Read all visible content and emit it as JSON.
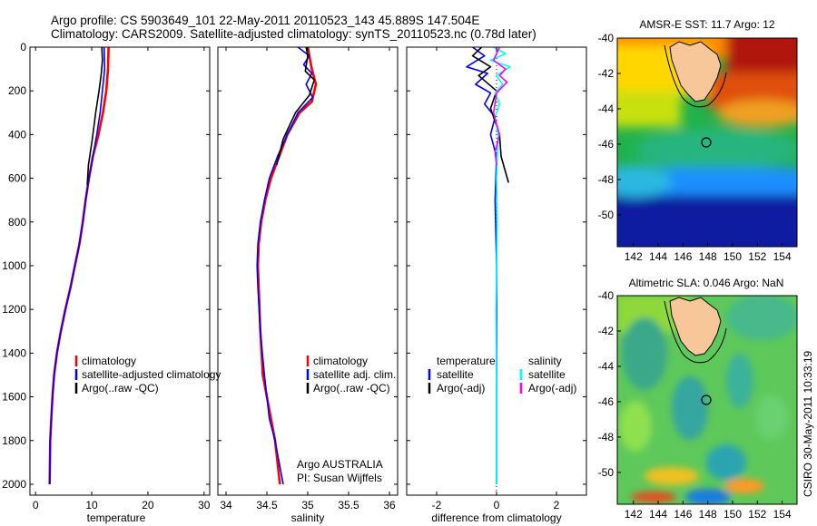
{
  "header": {
    "line1": "Argo profile: CS 5903649_101 22-May-2011 20110523_143 45.889S 147.504E",
    "line2": "Climatology: CARS2009. Satellite-adjusted climatology: synTS_20110523.nc (0.78d later)"
  },
  "colors": {
    "climatology": "#ff0000",
    "satellite": "#0000ff",
    "argo": "#000000",
    "sal_satellite": "#00ffff",
    "sal_argo": "#ff00ff"
  },
  "chart_data": [
    {
      "type": "line",
      "xlabel": "temperature",
      "xlim": [
        -1,
        31
      ],
      "xticks": [
        "0",
        "10",
        "20",
        "30"
      ],
      "ylim": [
        0,
        2050
      ],
      "yticks": [
        "0",
        "200",
        "400",
        "600",
        "800",
        "1000",
        "1200",
        "1400",
        "1600",
        "1800",
        "2000"
      ],
      "legend": [
        "climatology",
        "satellite-adjusted climatology",
        "Argo(..raw -QC)"
      ],
      "series": [
        {
          "name": "climatology",
          "x": [
            13.0,
            12.9,
            12.6,
            12.0,
            11.2,
            10.2,
            9.5,
            8.9,
            8.4,
            7.8,
            7.0,
            6.2,
            5.3,
            4.5,
            3.8,
            3.3,
            3.0,
            2.8,
            2.6,
            2.5
          ],
          "y": [
            0,
            100,
            200,
            300,
            400,
            500,
            600,
            700,
            800,
            900,
            1000,
            1100,
            1200,
            1300,
            1400,
            1500,
            1600,
            1700,
            1800,
            2000
          ]
        },
        {
          "name": "satellite-adjusted climatology",
          "x": [
            12.2,
            12.3,
            11.9,
            11.5,
            10.9,
            10.2,
            9.5,
            8.9,
            8.4,
            7.8,
            7.0,
            6.2,
            5.3,
            4.5,
            3.8,
            3.3,
            3.0,
            2.8,
            2.6,
            2.5
          ],
          "y": [
            0,
            100,
            200,
            300,
            400,
            500,
            600,
            700,
            800,
            900,
            1000,
            1100,
            1200,
            1300,
            1400,
            1500,
            1600,
            1700,
            1800,
            2000
          ]
        },
        {
          "name": "Argo(..raw -QC)",
          "x": [
            11.8,
            11.9,
            11.7,
            11.3,
            10.7,
            10.1,
            9.4,
            9.2
          ],
          "y": [
            0,
            60,
            120,
            200,
            300,
            420,
            540,
            630
          ]
        }
      ]
    },
    {
      "type": "line",
      "xlabel": "salinity",
      "xlim": [
        33.9,
        36.1
      ],
      "xticks": [
        "34",
        "34.5",
        "35",
        "35.5",
        "36"
      ],
      "ylim": [
        0,
        2050
      ],
      "legend": [
        "climatology",
        "satellite adj. clim.",
        "Argo(..raw -QC)"
      ],
      "annotation": [
        "Argo AUSTRALIA",
        "PI: Susan Wijffels"
      ],
      "series": [
        {
          "name": "climatology",
          "x": [
            35.0,
            35.05,
            35.1,
            35.05,
            34.9,
            34.75,
            34.65,
            34.55,
            34.48,
            34.43,
            34.4,
            34.39,
            34.4,
            34.42,
            34.45,
            34.5,
            34.55,
            34.6,
            34.66
          ],
          "y": [
            0,
            100,
            170,
            250,
            300,
            400,
            500,
            600,
            700,
            800,
            900,
            1000,
            1100,
            1300,
            1500,
            1600,
            1700,
            1800,
            2000
          ]
        },
        {
          "name": "satellite adj. clim.",
          "x": [
            34.88,
            35.02,
            34.95,
            35.05,
            34.98,
            35.06,
            34.88,
            34.75,
            34.63,
            34.53,
            34.47,
            34.42,
            34.39,
            34.38,
            34.39,
            34.42,
            34.47,
            34.53,
            34.6,
            34.7
          ],
          "y": [
            0,
            40,
            80,
            120,
            170,
            230,
            300,
            400,
            500,
            600,
            700,
            800,
            900,
            1000,
            1100,
            1300,
            1500,
            1700,
            1800,
            2000
          ]
        },
        {
          "name": "Argo(..raw -QC)",
          "x": [
            34.98,
            35.0,
            34.97,
            35.08,
            35.02,
            34.85,
            34.7,
            34.62
          ],
          "y": [
            0,
            40,
            110,
            150,
            220,
            300,
            420,
            540
          ]
        }
      ]
    },
    {
      "type": "line",
      "xlabel": "difference from climatology",
      "xlim": [
        -3,
        3
      ],
      "xticks": [
        "-2",
        "0",
        "2"
      ],
      "ylim": [
        0,
        2050
      ],
      "legend_title_left": "temperature",
      "legend_title_right": "salinity",
      "legend_left": [
        "satellite",
        "Argo(-adj)"
      ],
      "legend_right": [
        "satellite",
        "Argo(-adj)"
      ],
      "series": [
        {
          "name": "temperature satellite",
          "x": [
            -0.8,
            -0.4,
            -1.0,
            -0.3,
            -0.7,
            -0.2,
            -0.4,
            -0.05,
            -0.2,
            0.0,
            -0.05,
            0.0,
            0.0,
            0.0
          ],
          "y": [
            0,
            40,
            90,
            120,
            170,
            210,
            260,
            320,
            400,
            500,
            700,
            1000,
            1500,
            2000
          ]
        },
        {
          "name": "temperature Argo(-adj)",
          "x": [
            -0.5,
            -0.8,
            -0.2,
            -0.6,
            0.0,
            -0.2,
            0.1,
            0.15,
            0.4
          ],
          "y": [
            0,
            40,
            90,
            130,
            200,
            280,
            400,
            500,
            620
          ]
        },
        {
          "name": "salinity satellite",
          "x": [
            -0.1,
            0.3,
            -0.2,
            0.45,
            0.0,
            0.2,
            -0.05,
            0.1,
            -0.05,
            0.05,
            0.0,
            0.02,
            -0.02,
            0.0,
            0.0
          ],
          "y": [
            0,
            30,
            60,
            90,
            130,
            170,
            210,
            260,
            320,
            400,
            600,
            800,
            1200,
            1600,
            2000
          ]
        },
        {
          "name": "salinity Argo(-adj)",
          "x": [
            0.1,
            -0.1,
            0.3,
            0.1,
            0.35,
            0.0,
            -0.1,
            0.1,
            -0.05,
            0.0
          ],
          "y": [
            0,
            60,
            100,
            130,
            160,
            210,
            300,
            400,
            480,
            540
          ]
        }
      ]
    },
    {
      "type": "heatmap",
      "title": "AMSR-E SST: 11.7 Argo: 12",
      "xticks": [
        "142",
        "144",
        "146",
        "148",
        "150",
        "152",
        "154"
      ],
      "yticks": [
        "-40",
        "-42",
        "-44",
        "-46",
        "-48",
        "-50"
      ]
    },
    {
      "type": "heatmap",
      "title": "Altimetric SLA: 0.046 Argo: NaN",
      "xticks": [
        "142",
        "144",
        "146",
        "148",
        "150",
        "152",
        "154"
      ],
      "yticks": [
        "-40",
        "-42",
        "-44",
        "-46",
        "-48",
        "-50"
      ]
    }
  ],
  "credit": "CSIRO 30-May-2011 10:33:19"
}
